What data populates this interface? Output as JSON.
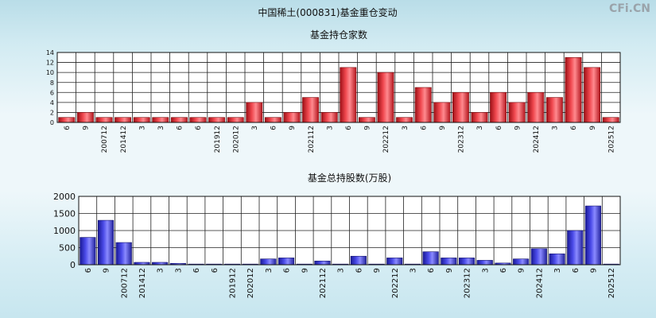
{
  "page": {
    "title": "中国稀土(000831)基金重仓变动",
    "watermark": "CFi.CN"
  },
  "chart_data": [
    {
      "type": "bar",
      "title": "基金持仓家数",
      "categories": [
        "6",
        "9",
        "200712",
        "201412",
        "3",
        "3",
        "6",
        "6",
        "201912",
        "202012",
        "3",
        "6",
        "9",
        "202112",
        "3",
        "6",
        "9",
        "202212",
        "3",
        "6",
        "9",
        "202312",
        "3",
        "6",
        "9",
        "202412",
        "3",
        "6",
        "9",
        "202512"
      ],
      "values": [
        1,
        2,
        1,
        1,
        1,
        1,
        1,
        1,
        1,
        1,
        4,
        1,
        2,
        5,
        2,
        11,
        1,
        10,
        1,
        7,
        4,
        6,
        2,
        6,
        4,
        6,
        5,
        13,
        11,
        1
      ],
      "ylim": [
        0,
        14
      ],
      "yticks": [
        0,
        2,
        4,
        6,
        8,
        10,
        12,
        14
      ],
      "grid": true,
      "bar_color": "#e0353f"
    },
    {
      "type": "bar",
      "title": "基金总持股数(万股)",
      "categories": [
        "6",
        "9",
        "200712",
        "201412",
        "3",
        "3",
        "6",
        "6",
        "201912",
        "202012",
        "3",
        "6",
        "9",
        "202112",
        "3",
        "6",
        "9",
        "202212",
        "3",
        "6",
        "9",
        "202312",
        "3",
        "6",
        "9",
        "202412",
        "3",
        "6",
        "9",
        "202512"
      ],
      "values": [
        800,
        1300,
        650,
        70,
        70,
        40,
        20,
        20,
        20,
        20,
        170,
        200,
        20,
        110,
        20,
        250,
        20,
        200,
        20,
        380,
        200,
        200,
        130,
        50,
        170,
        470,
        320,
        1000,
        1720,
        20
      ],
      "ylim": [
        0,
        2000
      ],
      "yticks": [
        0,
        500,
        1000,
        1500,
        2000
      ],
      "grid": true,
      "bar_color": "#3a3ad6"
    }
  ]
}
